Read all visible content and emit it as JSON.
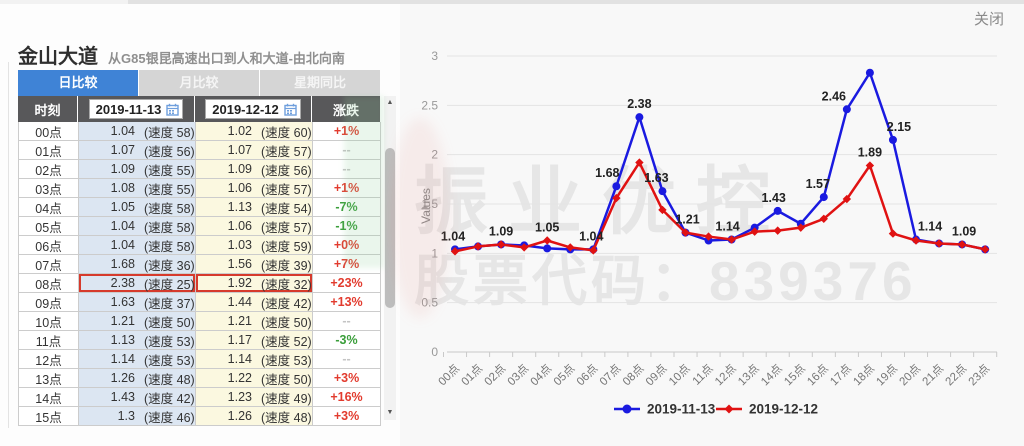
{
  "header": {
    "title": "金山大道",
    "subtitle": "从G85银昆高速出口到人和大道-由北向南",
    "close_label": "关闭"
  },
  "tabs": [
    {
      "label": "日比较",
      "active": true
    },
    {
      "label": "月比较",
      "active": false
    },
    {
      "label": "星期同比",
      "active": false
    }
  ],
  "table": {
    "col_time": "时刻",
    "col_change": "涨跌",
    "date_left": "2019-11-13",
    "date_right": "2019-12-12",
    "dash": "--",
    "rows": [
      {
        "time": "00点",
        "va": "1.04",
        "sa": "(速度 58)",
        "vb": "1.02",
        "sb": "(速度 60)",
        "change": "+1%",
        "change_type": "up",
        "highlight": false
      },
      {
        "time": "01点",
        "va": "1.07",
        "sa": "(速度 56)",
        "vb": "1.07",
        "sb": "(速度 57)",
        "change": "--",
        "change_type": "none",
        "highlight": false
      },
      {
        "time": "02点",
        "va": "1.09",
        "sa": "(速度 55)",
        "vb": "1.09",
        "sb": "(速度 56)",
        "change": "--",
        "change_type": "none",
        "highlight": false
      },
      {
        "time": "03点",
        "va": "1.08",
        "sa": "(速度 55)",
        "vb": "1.06",
        "sb": "(速度 57)",
        "change": "+1%",
        "change_type": "up",
        "highlight": false
      },
      {
        "time": "04点",
        "va": "1.05",
        "sa": "(速度 58)",
        "vb": "1.13",
        "sb": "(速度 54)",
        "change": "-7%",
        "change_type": "down",
        "highlight": false
      },
      {
        "time": "05点",
        "va": "1.04",
        "sa": "(速度 58)",
        "vb": "1.06",
        "sb": "(速度 57)",
        "change": "-1%",
        "change_type": "down",
        "highlight": false
      },
      {
        "time": "06点",
        "va": "1.04",
        "sa": "(速度 58)",
        "vb": "1.03",
        "sb": "(速度 59)",
        "change": "+0%",
        "change_type": "up",
        "highlight": false
      },
      {
        "time": "07点",
        "va": "1.68",
        "sa": "(速度 36)",
        "vb": "1.56",
        "sb": "(速度 39)",
        "change": "+7%",
        "change_type": "up",
        "highlight": false
      },
      {
        "time": "08点",
        "va": "2.38",
        "sa": "(速度 25)",
        "vb": "1.92",
        "sb": "(速度 32)",
        "change": "+23%",
        "change_type": "up",
        "highlight": true
      },
      {
        "time": "09点",
        "va": "1.63",
        "sa": "(速度 37)",
        "vb": "1.44",
        "sb": "(速度 42)",
        "change": "+13%",
        "change_type": "up",
        "highlight": false
      },
      {
        "time": "10点",
        "va": "1.21",
        "sa": "(速度 50)",
        "vb": "1.21",
        "sb": "(速度 50)",
        "change": "--",
        "change_type": "none",
        "highlight": false
      },
      {
        "time": "11点",
        "va": "1.13",
        "sa": "(速度 53)",
        "vb": "1.17",
        "sb": "(速度 52)",
        "change": "-3%",
        "change_type": "down",
        "highlight": false
      },
      {
        "time": "12点",
        "va": "1.14",
        "sa": "(速度 53)",
        "vb": "1.14",
        "sb": "(速度 53)",
        "change": "--",
        "change_type": "none",
        "highlight": false
      },
      {
        "time": "13点",
        "va": "1.26",
        "sa": "(速度 48)",
        "vb": "1.22",
        "sb": "(速度 50)",
        "change": "+3%",
        "change_type": "up",
        "highlight": false
      },
      {
        "time": "14点",
        "va": "1.43",
        "sa": "(速度 42)",
        "vb": "1.23",
        "sb": "(速度 49)",
        "change": "+16%",
        "change_type": "up",
        "highlight": false
      },
      {
        "time": "15点",
        "va": "1.3",
        "sa": "(速度 46)",
        "vb": "1.26",
        "sb": "(速度 48)",
        "change": "+3%",
        "change_type": "up",
        "highlight": false
      }
    ]
  },
  "watermark": {
    "line1": "振业优控",
    "line2": "股票代码：839376"
  },
  "colors": {
    "tab_active": "#3f83d6",
    "header_bg": "#58585a",
    "col_left_bg": "#dce6f2",
    "col_right_bg": "#fbf8e0",
    "up_red": "#e23b2e",
    "down_green": "#3a9e3a",
    "series_blue": "#1a1ae0",
    "series_red": "#e01212"
  },
  "chart_data": {
    "type": "line",
    "title": "",
    "xlabel": "",
    "ylabel": "Values",
    "ylim": [
      0,
      3
    ],
    "yticks": [
      0,
      0.5,
      1,
      1.5,
      2,
      2.5,
      3
    ],
    "grid": true,
    "legend_position": "bottom",
    "categories": [
      "00点",
      "01点",
      "02点",
      "03点",
      "04点",
      "05点",
      "06点",
      "07点",
      "08点",
      "09点",
      "10点",
      "11点",
      "12点",
      "13点",
      "14点",
      "15点",
      "16点",
      "17点",
      "18点",
      "19点",
      "20点",
      "21点",
      "22点",
      "23点"
    ],
    "series": [
      {
        "name": "2019-11-13",
        "color": "#1a1ae0",
        "marker": "circle",
        "values": [
          1.04,
          1.07,
          1.09,
          1.08,
          1.05,
          1.04,
          1.04,
          1.68,
          2.38,
          1.63,
          1.21,
          1.13,
          1.14,
          1.26,
          1.43,
          1.3,
          1.57,
          2.46,
          2.83,
          2.15,
          1.14,
          1.1,
          1.09,
          1.04
        ]
      },
      {
        "name": "2019-12-12",
        "color": "#e01212",
        "marker": "diamond",
        "values": [
          1.02,
          1.07,
          1.09,
          1.06,
          1.13,
          1.06,
          1.03,
          1.56,
          1.92,
          1.44,
          1.21,
          1.17,
          1.14,
          1.22,
          1.23,
          1.26,
          1.35,
          1.55,
          1.89,
          1.2,
          1.13,
          1.1,
          1.09,
          1.04
        ]
      }
    ],
    "point_labels": [
      {
        "series": 0,
        "h": 0,
        "anchor": 1.04,
        "text": "1.04",
        "dx": -2
      },
      {
        "series": 0,
        "h": 2,
        "anchor": 1.09,
        "text": "1.09",
        "dx": 0
      },
      {
        "series": 0,
        "h": 4,
        "anchor": 1.13,
        "text": "1.05",
        "dx": 0
      },
      {
        "series": 0,
        "h": 6,
        "anchor": 1.04,
        "text": "1.04",
        "dx": -2
      },
      {
        "series": 0,
        "h": 7,
        "anchor": 1.68,
        "text": "1.68",
        "dx": -9
      },
      {
        "series": 0,
        "h": 8,
        "anchor": 2.38,
        "text": "2.38",
        "dx": 0
      },
      {
        "series": 0,
        "h": 9,
        "anchor": 1.63,
        "text": "1.63",
        "dx": -6
      },
      {
        "series": 0,
        "h": 10,
        "anchor": 1.21,
        "text": "1.21",
        "dx": 2
      },
      {
        "series": 0,
        "h": 12,
        "anchor": 1.14,
        "text": "1.14",
        "dx": -4
      },
      {
        "series": 0,
        "h": 14,
        "anchor": 1.43,
        "text": "1.43",
        "dx": -4
      },
      {
        "series": 0,
        "h": 16,
        "anchor": 1.57,
        "text": "1.57",
        "dx": -6
      },
      {
        "series": 0,
        "h": 17,
        "anchor": 2.46,
        "text": "2.46",
        "dx": -13
      },
      {
        "series": 1,
        "h": 18,
        "anchor": 1.89,
        "text": "1.89",
        "dx": 0
      },
      {
        "series": 0,
        "h": 19,
        "anchor": 2.15,
        "text": "2.15",
        "dx": 6
      },
      {
        "series": 0,
        "h": 20,
        "anchor": 1.14,
        "text": "1.14",
        "dx": 14
      },
      {
        "series": 0,
        "h": 22,
        "anchor": 1.09,
        "text": "1.09",
        "dx": 2
      }
    ]
  }
}
